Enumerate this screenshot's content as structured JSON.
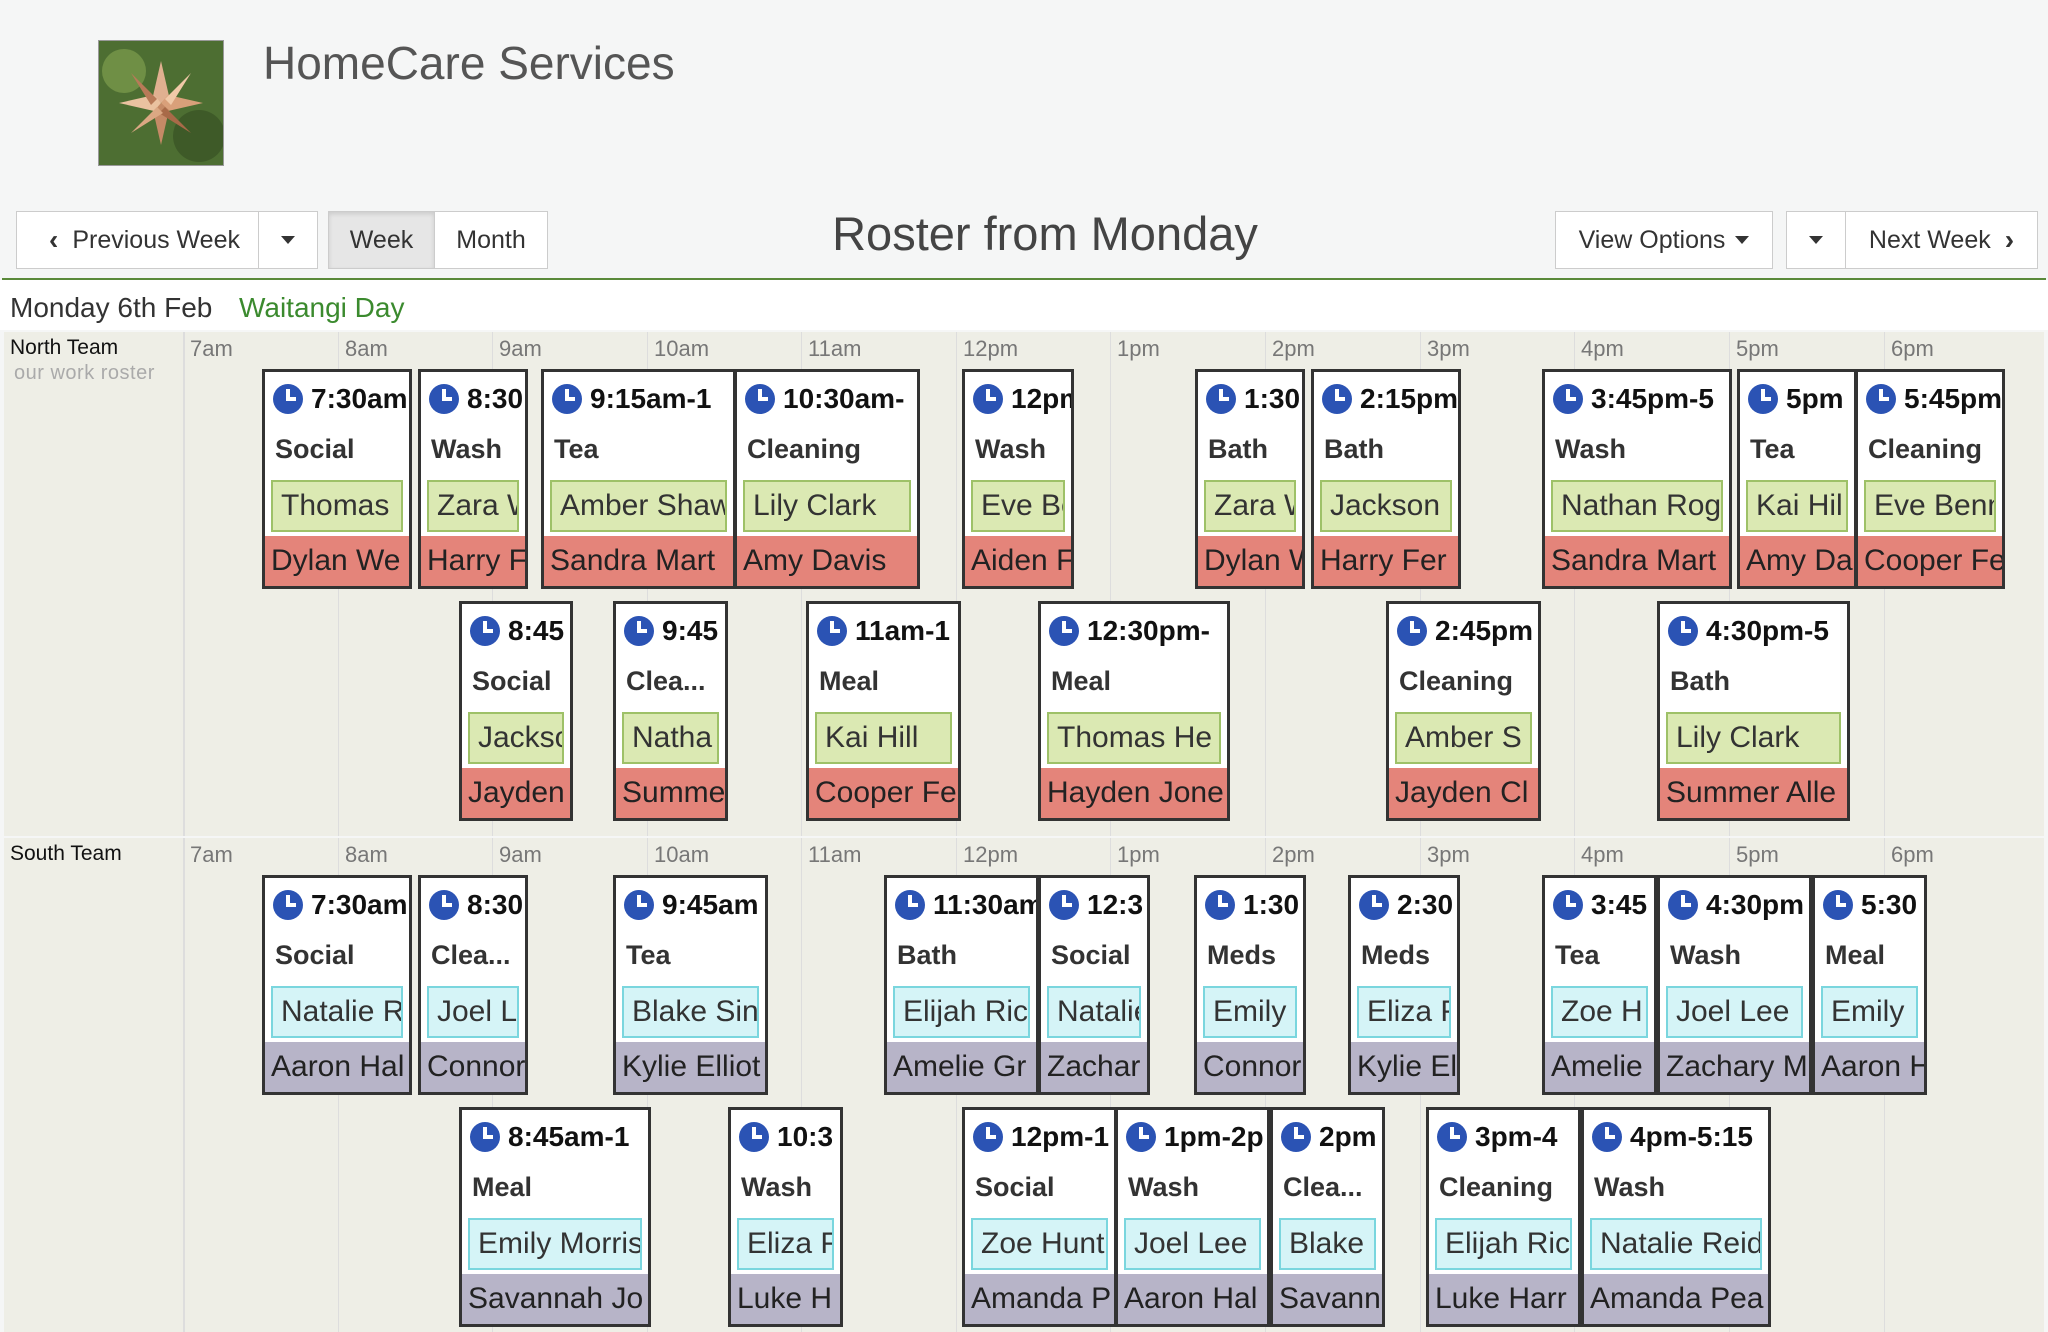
{
  "app": {
    "title": "HomeCare Services"
  },
  "toolbar": {
    "previous_week": "Previous Week",
    "week": "Week",
    "month": "Month",
    "view_options": "View Options",
    "next_week": "Next Week"
  },
  "roster_title": "Roster from Monday",
  "day": {
    "label": "Monday 6th Feb",
    "holiday": "Waitangi Day"
  },
  "hours": [
    "7am",
    "8am",
    "9am",
    "10am",
    "11am",
    "12pm",
    "1pm",
    "2pm",
    "3pm",
    "4pm",
    "5pm",
    "6pm"
  ],
  "teams": [
    {
      "name": "North Team",
      "subtitle": "our work roster",
      "shifts": [
        {
          "time": "7:30am",
          "type": "Social",
          "client": "Thomas",
          "staff": "Dylan We"
        },
        {
          "time": "8:30",
          "type": "Wash",
          "client": "Zara W",
          "staff": "Harry F"
        },
        {
          "time": "9:15am-1",
          "type": "Tea",
          "client": "Amber Shaw",
          "staff": "Sandra Mart"
        },
        {
          "time": "10:30am-",
          "type": "Cleaning",
          "client": "Lily Clark",
          "staff": "Amy Davis"
        },
        {
          "time": "12pm",
          "type": "Wash",
          "client": "Eve Be",
          "staff": "Aiden F"
        },
        {
          "time": "1:30",
          "type": "Bath",
          "client": "Zara W",
          "staff": "Dylan W"
        },
        {
          "time": "2:15pm",
          "type": "Bath",
          "client": "Jackson",
          "staff": "Harry Fer"
        },
        {
          "time": "3:45pm-5",
          "type": "Wash",
          "client": "Nathan Rog",
          "staff": "Sandra Mart"
        },
        {
          "time": "5pm",
          "type": "Tea",
          "client": "Kai Hil",
          "staff": "Amy Da"
        },
        {
          "time": "5:45pm",
          "type": "Cleaning",
          "client": "Eve Benn",
          "staff": "Cooper Fe"
        },
        {
          "time": "8:45",
          "type": "Social",
          "client": "Jackso",
          "staff": "Jayden"
        },
        {
          "time": "9:45",
          "type": "Clea...",
          "client": "Natha",
          "staff": "Summe"
        },
        {
          "time": "11am-1",
          "type": "Meal",
          "client": "Kai Hill",
          "staff": "Cooper Fe"
        },
        {
          "time": "12:30pm-",
          "type": "Meal",
          "client": "Thomas He",
          "staff": "Hayden Jone"
        },
        {
          "time": "2:45pm",
          "type": "Cleaning",
          "client": "Amber S",
          "staff": "Jayden Cl"
        },
        {
          "time": "4:30pm-5",
          "type": "Bath",
          "client": "Lily Clark",
          "staff": "Summer Alle"
        }
      ]
    },
    {
      "name": "South Team",
      "subtitle": "",
      "shifts": [
        {
          "time": "7:30am",
          "type": "Social",
          "client": "Natalie R",
          "staff": "Aaron Hal"
        },
        {
          "time": "8:30",
          "type": "Clea...",
          "client": "Joel Le",
          "staff": "Connor"
        },
        {
          "time": "9:45am",
          "type": "Tea",
          "client": "Blake Sin",
          "staff": "Kylie Elliot"
        },
        {
          "time": "11:30am",
          "type": "Bath",
          "client": "Elijah Ric",
          "staff": "Amelie Gr"
        },
        {
          "time": "12:3",
          "type": "Social",
          "client": "Natalie",
          "staff": "Zachar"
        },
        {
          "time": "1:30",
          "type": "Meds",
          "client": "Emily",
          "staff": "Connor"
        },
        {
          "time": "2:30",
          "type": "Meds",
          "client": "Eliza F",
          "staff": "Kylie El"
        },
        {
          "time": "3:45",
          "type": "Tea",
          "client": "Zoe H",
          "staff": "Amelie"
        },
        {
          "time": "4:30pm",
          "type": "Wash",
          "client": "Joel Lee",
          "staff": "Zachary M"
        },
        {
          "time": "5:30",
          "type": "Meal",
          "client": "Emily",
          "staff": "Aaron H"
        },
        {
          "time": "8:45am-1",
          "type": "Meal",
          "client": "Emily Morris",
          "staff": "Savannah Jo"
        },
        {
          "time": "10:3",
          "type": "Wash",
          "client": "Eliza F",
          "staff": "Luke H"
        },
        {
          "time": "12pm-1",
          "type": "Social",
          "client": "Zoe Hunt",
          "staff": "Amanda P"
        },
        {
          "time": "1pm-2p",
          "type": "Wash",
          "client": "Joel Lee",
          "staff": "Aaron Hal"
        },
        {
          "time": "2pm",
          "type": "Clea...",
          "client": "Blake",
          "staff": "Savann"
        },
        {
          "time": "3pm-4",
          "type": "Cleaning",
          "client": "Elijah Ric",
          "staff": "Luke Harr"
        },
        {
          "time": "4pm-5:15",
          "type": "Wash",
          "client": "Natalie Reid",
          "staff": "Amanda Pea"
        }
      ]
    }
  ]
}
